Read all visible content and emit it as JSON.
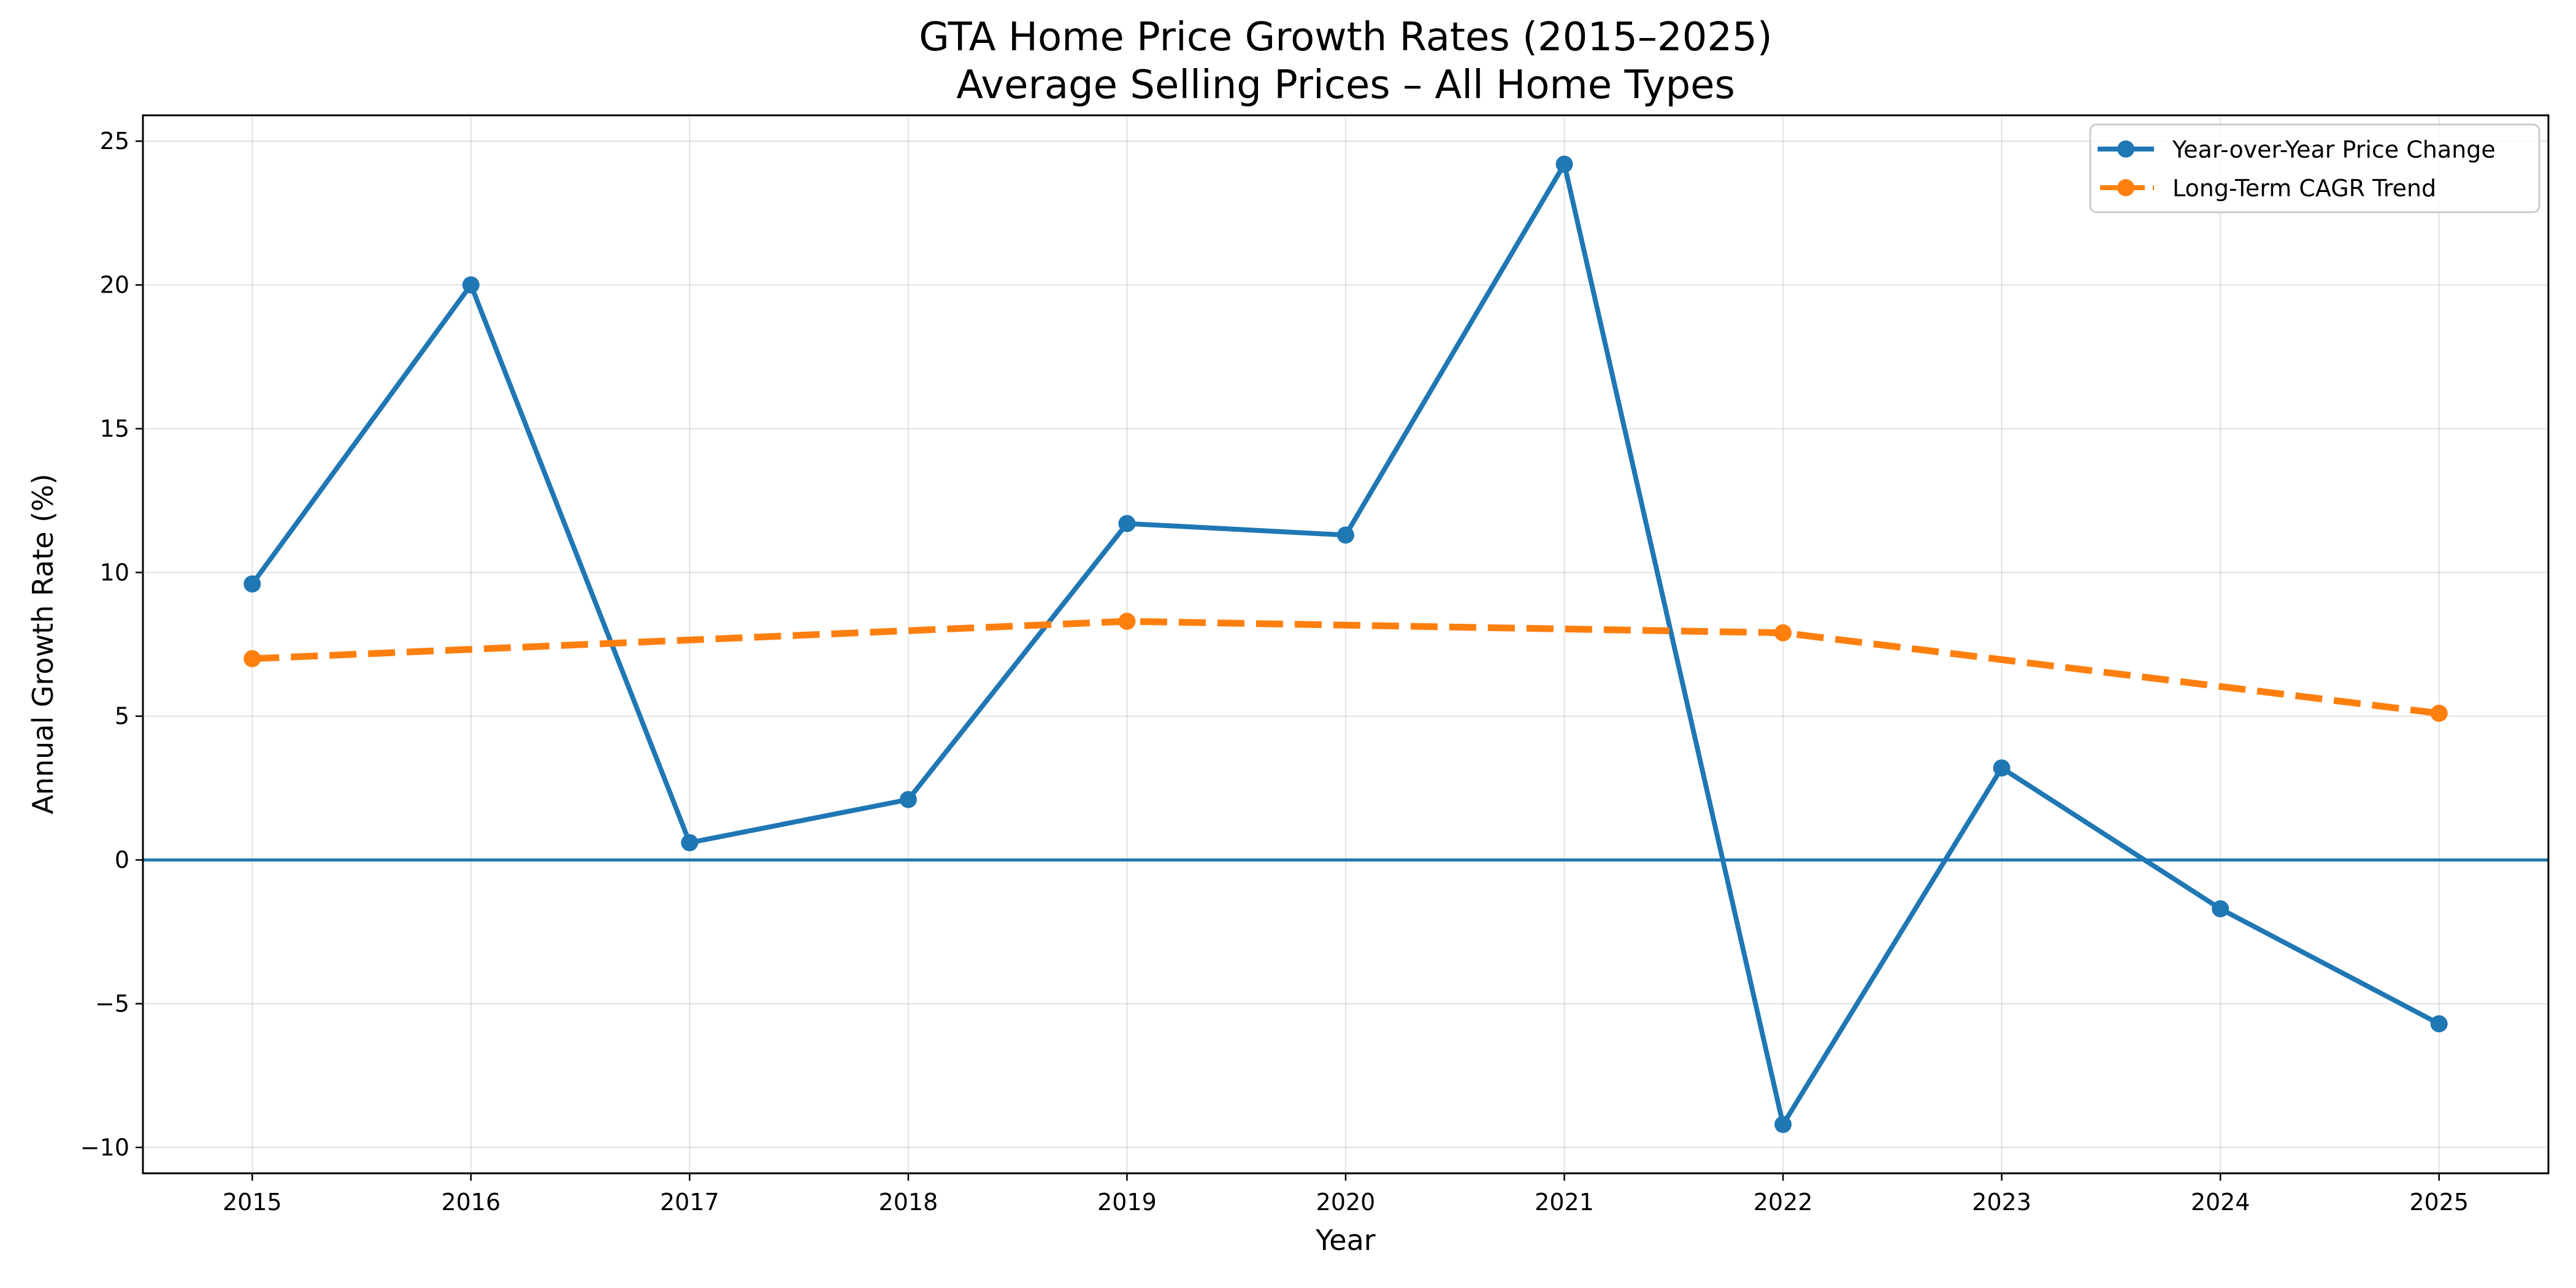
{
  "chart_data": {
    "type": "line",
    "title": "GTA Home Price Growth Rates (2015–2025)",
    "subtitle": "Average Selling Prices – All Home Types",
    "xlabel": "Year",
    "ylabel": "Annual Growth Rate (%)",
    "x": [
      2015,
      2016,
      2017,
      2018,
      2019,
      2020,
      2021,
      2022,
      2023,
      2024,
      2025
    ],
    "x_tick_labels": [
      "2015",
      "2016",
      "2017",
      "2018",
      "2019",
      "2020",
      "2021",
      "2022",
      "2023",
      "2024",
      "2025"
    ],
    "xlim": [
      2014.5,
      2025.5
    ],
    "ylim": [
      -10.9,
      25.9
    ],
    "y_ticks": [
      -10,
      -5,
      0,
      5,
      10,
      15,
      20,
      25
    ],
    "y_tick_labels": [
      "−10",
      "−5",
      "0",
      "5",
      "10",
      "15",
      "20",
      "25"
    ],
    "grid": true,
    "reference_line": {
      "y": 0,
      "color": "#1f77b4"
    },
    "legend_position": "top-right",
    "series": [
      {
        "name": "Year-over-Year Price Change",
        "color": "#1f77b4",
        "style": "solid",
        "marker": "circle",
        "x": [
          2015,
          2016,
          2017,
          2018,
          2019,
          2020,
          2021,
          2022,
          2023,
          2024,
          2025
        ],
        "values": [
          9.6,
          20.0,
          0.6,
          2.1,
          11.7,
          11.3,
          24.2,
          -9.2,
          3.2,
          -1.7,
          -5.7
        ]
      },
      {
        "name": "Long-Term CAGR Trend",
        "color": "#ff7f0e",
        "style": "dashed",
        "marker": "circle",
        "x": [
          2015,
          2019,
          2022,
          2025
        ],
        "values": [
          7.0,
          8.3,
          7.9,
          5.1
        ]
      }
    ]
  }
}
